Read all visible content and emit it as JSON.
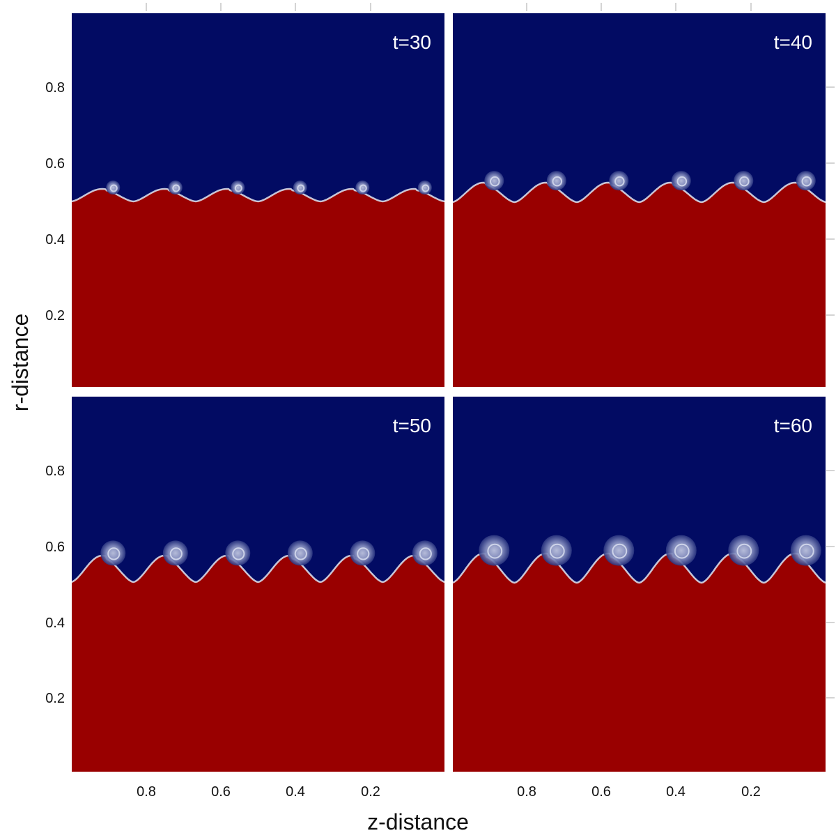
{
  "figure": {
    "xlabel": "z-distance",
    "ylabel": "r-distance",
    "colors": {
      "upper_fluid": "#020b63",
      "lower_fluid": "#990000",
      "interface": "#dfe6f2"
    }
  },
  "panels": [
    {
      "label": "t=30"
    },
    {
      "label": "t=40"
    },
    {
      "label": "t=50"
    },
    {
      "label": "t=60"
    }
  ],
  "axes": {
    "x_ticks": [
      "0.8",
      "0.6",
      "0.4",
      "0.2"
    ],
    "y_ticks": [
      "0.8",
      "0.6",
      "0.4",
      "0.2"
    ]
  },
  "layout_semantics": {
    "x_axis_direction": "decreasing to the right",
    "wave_count_per_panel": 6
  }
}
